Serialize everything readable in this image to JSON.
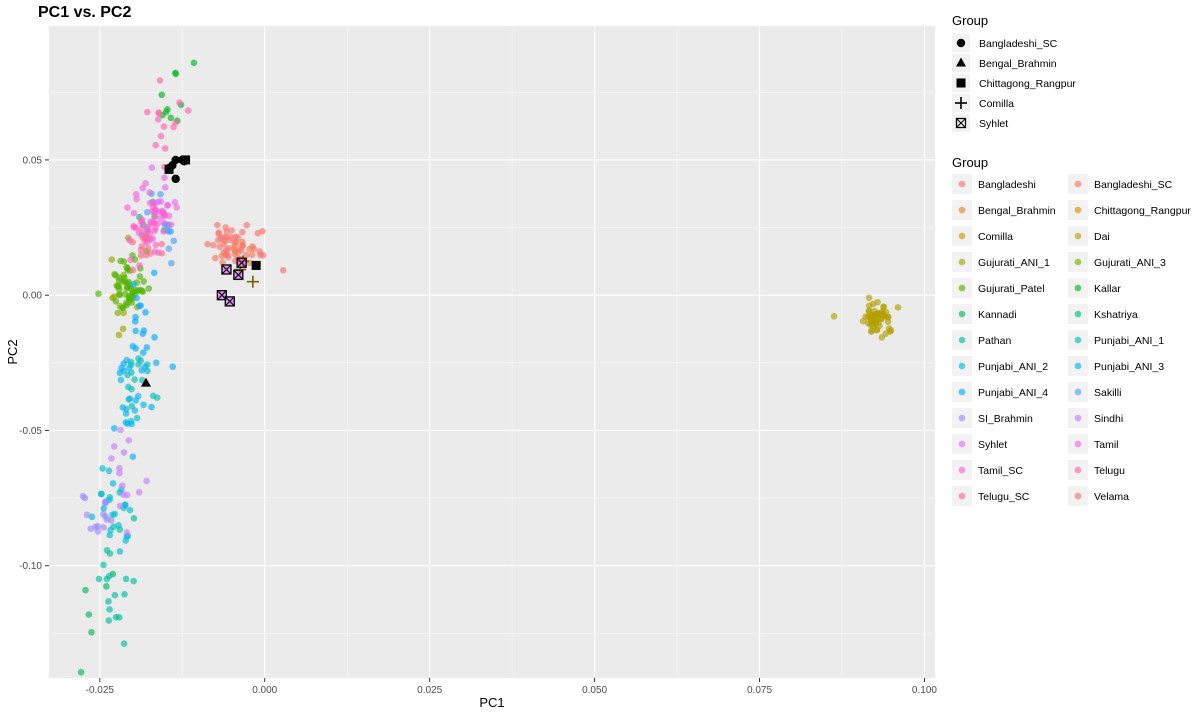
{
  "chart_data": {
    "type": "scatter",
    "title": "PC1 vs. PC2",
    "xlabel": "PC1",
    "ylabel": "PC2",
    "xlim": [
      -0.0327,
      0.1016
    ],
    "ylim": [
      -0.1415,
      0.0995
    ],
    "x_ticks": [
      {
        "value": -0.025,
        "label": "-0.025"
      },
      {
        "value": 0.0,
        "label": "0.000"
      },
      {
        "value": 0.025,
        "label": "0.025"
      },
      {
        "value": 0.05,
        "label": "0.050"
      },
      {
        "value": 0.075,
        "label": "0.075"
      },
      {
        "value": 0.1,
        "label": "0.100"
      }
    ],
    "y_ticks": [
      {
        "value": -0.1,
        "label": "-0.10"
      },
      {
        "value": -0.05,
        "label": "-0.05"
      },
      {
        "value": 0.0,
        "label": "0.00"
      },
      {
        "value": 0.05,
        "label": "0.05"
      }
    ],
    "grid": true,
    "legend_position": "right",
    "shape_legend": {
      "title": "Group",
      "items": [
        {
          "label": "Bangladeshi_SC",
          "shape": "circle"
        },
        {
          "label": "Bengal_Brahmin",
          "shape": "triangle"
        },
        {
          "label": "Chittagong_Rangpur",
          "shape": "square"
        },
        {
          "label": "Comilla",
          "shape": "plus"
        },
        {
          "label": "Syhlet",
          "shape": "boxcross"
        }
      ]
    },
    "color_legend": {
      "title": "Group",
      "items": [
        {
          "label": "Bangladeshi",
          "color": "#F8766D"
        },
        {
          "label": "Bangladeshi_SC",
          "color": "#F27D53"
        },
        {
          "label": "Bengal_Brahmin",
          "color": "#E6862F"
        },
        {
          "label": "Chittagong_Rangpur",
          "color": "#D89000"
        },
        {
          "label": "Comilla",
          "color": "#C79800"
        },
        {
          "label": "Dai",
          "color": "#B3A000"
        },
        {
          "label": "Gujurati_ANI_1",
          "color": "#9AA800"
        },
        {
          "label": "Gujurati_ANI_3",
          "color": "#7CAE00"
        },
        {
          "label": "Gujurati_Patel",
          "color": "#4FB300"
        },
        {
          "label": "Kallar",
          "color": "#00B81F"
        },
        {
          "label": "Kannadi",
          "color": "#00BC5C"
        },
        {
          "label": "Kshatriya",
          "color": "#00BE80"
        },
        {
          "label": "Pathan",
          "color": "#00C0A0"
        },
        {
          "label": "Punjabi_ANI_1",
          "color": "#00C0BD"
        },
        {
          "label": "Punjabi_ANI_2",
          "color": "#00BDD8"
        },
        {
          "label": "Punjabi_ANI_3",
          "color": "#00B7EC"
        },
        {
          "label": "Punjabi_ANI_4",
          "color": "#00AEFA"
        },
        {
          "label": "Sakilli",
          "color": "#4BA4FF"
        },
        {
          "label": "SI_Brahmin",
          "color": "#9C8CFF"
        },
        {
          "label": "Sindhi",
          "color": "#C97CFF"
        },
        {
          "label": "Syhlet",
          "color": "#E36EF6"
        },
        {
          "label": "Tamil",
          "color": "#F566E3"
        },
        {
          "label": "Tamil_SC",
          "color": "#FF61C9"
        },
        {
          "label": "Telugu",
          "color": "#FF65AE"
        },
        {
          "label": "Telugu_SC",
          "color": "#FF6C91"
        },
        {
          "label": "Velama",
          "color": "#FB7374"
        }
      ]
    },
    "point_clusters": [
      {
        "group": "Bangladeshi",
        "n": 40,
        "cx": -0.0045,
        "cy": 0.019,
        "sx": 0.0023,
        "sy": 0.0035
      },
      {
        "group": "Bangladeshi",
        "n": 1,
        "cx": 0.0028,
        "cy": 0.0092,
        "sx": 0.0,
        "sy": 0.0
      },
      {
        "group": "Bangladeshi_SC",
        "n": 12,
        "cx": -0.004,
        "cy": 0.016,
        "sx": 0.002,
        "sy": 0.003
      },
      {
        "group": "Velama",
        "n": 6,
        "cx": -0.003,
        "cy": 0.014,
        "sx": 0.002,
        "sy": 0.003
      },
      {
        "group": "Dai",
        "n": 60,
        "cx": 0.0928,
        "cy": -0.0085,
        "sx": 0.0009,
        "sy": 0.0032
      },
      {
        "group": "Dai",
        "n": 1,
        "cx": 0.0863,
        "cy": -0.0078,
        "sx": 0.0,
        "sy": 0.0
      },
      {
        "group": "Gujurati_ANI_1",
        "n": 10,
        "cx": -0.0215,
        "cy": -0.002,
        "sx": 0.0012,
        "sy": 0.012
      },
      {
        "group": "Gujurati_ANI_3",
        "n": 6,
        "cx": -0.0222,
        "cy": 0.006,
        "sx": 0.0008,
        "sy": 0.005
      },
      {
        "group": "Gujurati_Patel",
        "n": 50,
        "cx": -0.0205,
        "cy": 0.003,
        "sx": 0.0012,
        "sy": 0.006
      },
      {
        "group": "Kallar",
        "n": 10,
        "cx": -0.0135,
        "cy": 0.07,
        "sx": 0.0015,
        "sy": 0.006
      },
      {
        "group": "Kshatriya",
        "n": 6,
        "cx": -0.017,
        "cy": 0.028,
        "sx": 0.0012,
        "sy": 0.005
      },
      {
        "group": "Kannadi",
        "n": 6,
        "cx": -0.0255,
        "cy": -0.107,
        "sx": 0.0012,
        "sy": 0.012
      },
      {
        "group": "Pathan",
        "n": 20,
        "cx": -0.0225,
        "cy": -0.1,
        "sx": 0.0015,
        "sy": 0.015
      },
      {
        "group": "Punjabi_ANI_1",
        "n": 18,
        "cx": -0.0195,
        "cy": -0.032,
        "sx": 0.0012,
        "sy": 0.006
      },
      {
        "group": "Punjabi_ANI_2",
        "n": 24,
        "cx": -0.0225,
        "cy": -0.078,
        "sx": 0.0015,
        "sy": 0.012
      },
      {
        "group": "Punjabi_ANI_3",
        "n": 18,
        "cx": -0.0205,
        "cy": -0.045,
        "sx": 0.0012,
        "sy": 0.01
      },
      {
        "group": "Punjabi_ANI_4",
        "n": 24,
        "cx": -0.0185,
        "cy": -0.015,
        "sx": 0.0015,
        "sy": 0.012
      },
      {
        "group": "Sakilli",
        "n": 14,
        "cx": -0.016,
        "cy": 0.025,
        "sx": 0.0015,
        "sy": 0.008
      },
      {
        "group": "SI_Brahmin",
        "n": 14,
        "cx": -0.025,
        "cy": -0.083,
        "sx": 0.0012,
        "sy": 0.005
      },
      {
        "group": "Sindhi",
        "n": 14,
        "cx": -0.0215,
        "cy": -0.065,
        "sx": 0.0012,
        "sy": 0.01
      },
      {
        "group": "Syhlet",
        "n": 8,
        "cx": -0.017,
        "cy": 0.037,
        "sx": 0.0012,
        "sy": 0.006
      },
      {
        "group": "Tamil",
        "n": 30,
        "cx": -0.0165,
        "cy": 0.029,
        "sx": 0.0015,
        "sy": 0.006
      },
      {
        "group": "Tamil_SC",
        "n": 30,
        "cx": -0.0175,
        "cy": 0.025,
        "sx": 0.0015,
        "sy": 0.005
      },
      {
        "group": "Telugu",
        "n": 14,
        "cx": -0.015,
        "cy": 0.063,
        "sx": 0.0015,
        "sy": 0.006
      },
      {
        "group": "Telugu_SC",
        "n": 12,
        "cx": -0.018,
        "cy": 0.017,
        "sx": 0.0012,
        "sy": 0.005
      }
    ],
    "overlay_points": [
      {
        "group": "Bangladeshi_SC",
        "shape": "circle",
        "x": -0.0125,
        "y": 0.05
      },
      {
        "group": "Bangladeshi_SC",
        "shape": "circle",
        "x": -0.0135,
        "y": 0.05
      },
      {
        "group": "Bangladeshi_SC",
        "shape": "circle",
        "x": -0.0122,
        "y": 0.0495
      },
      {
        "group": "Bangladeshi_SC",
        "shape": "circle",
        "x": -0.014,
        "y": 0.048
      },
      {
        "group": "Bangladeshi_SC",
        "shape": "circle",
        "x": -0.0145,
        "y": 0.047
      },
      {
        "group": "Bangladeshi_SC",
        "shape": "circle",
        "x": -0.0135,
        "y": 0.043
      },
      {
        "group": "Bengal_Brahmin",
        "shape": "triangle",
        "x": -0.018,
        "y": -0.0325
      },
      {
        "group": "Chittagong_Rangpur",
        "shape": "square",
        "x": -0.0013,
        "y": 0.011
      },
      {
        "group": "Chittagong_Rangpur",
        "shape": "square",
        "x": -0.0145,
        "y": 0.0465
      },
      {
        "group": "Chittagong_Rangpur",
        "shape": "square",
        "x": -0.012,
        "y": 0.05
      },
      {
        "group": "Comilla",
        "shape": "plus",
        "x": -0.0033,
        "y": 0.0125
      },
      {
        "group": "Comilla",
        "shape": "plus",
        "x": -0.0037,
        "y": 0.0095
      },
      {
        "group": "Comilla",
        "shape": "plus",
        "x": -0.0018,
        "y": 0.005
      },
      {
        "group": "Syhlet",
        "shape": "boxcross",
        "x": -0.0035,
        "y": 0.012
      },
      {
        "group": "Syhlet",
        "shape": "boxcross",
        "x": -0.0058,
        "y": 0.0095
      },
      {
        "group": "Syhlet",
        "shape": "boxcross",
        "x": -0.004,
        "y": 0.0075
      },
      {
        "group": "Syhlet",
        "shape": "boxcross",
        "x": -0.0065,
        "y": 0.0
      },
      {
        "group": "Syhlet",
        "shape": "boxcross",
        "x": -0.0053,
        "y": -0.0023
      }
    ]
  }
}
